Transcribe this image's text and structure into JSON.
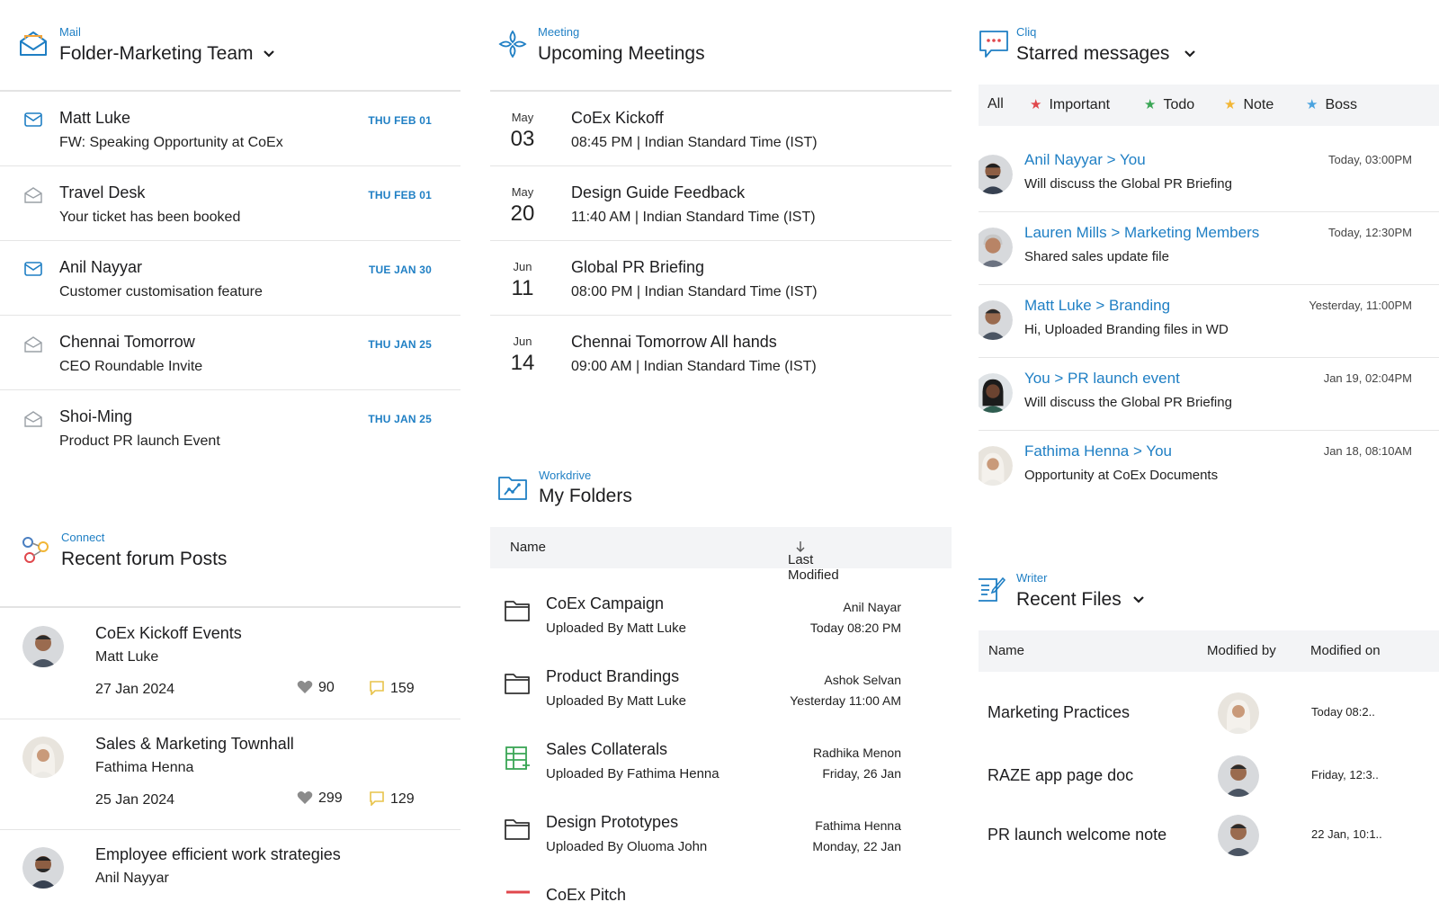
{
  "mail": {
    "app": "Mail",
    "title": "Folder-Marketing Team",
    "items": [
      {
        "sender": "Matt Luke",
        "subject": "FW: Speaking Opportunity at CoEx",
        "date": "THU FEB 01",
        "icon": "envelope-icon"
      },
      {
        "sender": "Travel Desk",
        "subject": "Your ticket has been booked",
        "date": "THU FEB 01",
        "icon": "envelope-open-icon"
      },
      {
        "sender": "Anil Nayyar",
        "subject": "Customer customisation feature",
        "date": "TUE JAN 30",
        "icon": "envelope-icon"
      },
      {
        "sender": "Chennai Tomorrow",
        "subject": "CEO Roundable Invite",
        "date": "THU JAN 25",
        "icon": "envelope-open-icon"
      },
      {
        "sender": "Shoi-Ming",
        "subject": "Product PR launch Event",
        "date": "THU JAN 25",
        "icon": "envelope-open-icon"
      }
    ]
  },
  "connect": {
    "app": "Connect",
    "title": "Recent forum Posts",
    "posts": [
      {
        "title": "CoEx Kickoff Events",
        "author": "Matt Luke",
        "date": "27 Jan 2024",
        "likes": "90",
        "comments": "159"
      },
      {
        "title": "Sales & Marketing Townhall",
        "author": "Fathima Henna",
        "date": "25 Jan 2024",
        "likes": "299",
        "comments": "129"
      },
      {
        "title": "Employee efficient work strategies",
        "author": "Anil Nayyar",
        "date": "",
        "likes": "",
        "comments": ""
      }
    ]
  },
  "meeting": {
    "app": "Meeting",
    "title": "Upcoming Meetings",
    "items": [
      {
        "month": "May",
        "day": "03",
        "title": "CoEx Kickoff",
        "time": "08:45 PM | Indian Standard Time (IST)"
      },
      {
        "month": "May",
        "day": "20",
        "title": "Design Guide Feedback",
        "time": "11:40 AM | Indian Standard Time (IST)"
      },
      {
        "month": "Jun",
        "day": "11",
        "title": "Global PR Briefing",
        "time": "08:00 PM | Indian Standard Time (IST)"
      },
      {
        "month": "Jun",
        "day": "14",
        "title": "Chennai Tomorrow All hands",
        "time": "09:00 AM | Indian Standard Time (IST)"
      }
    ]
  },
  "workdrive": {
    "app": "Workdrive",
    "title": "My Folders",
    "col_name": "Name",
    "col_modified": "Last Modified",
    "folders": [
      {
        "name": "CoEx Campaign",
        "uploaded_by": "Uploaded By Matt Luke",
        "modifier": "Anil Nayar",
        "when": "Today 08:20 PM",
        "icon": "folder-icon"
      },
      {
        "name": "Product Brandings",
        "uploaded_by": "Uploaded By Matt Luke",
        "modifier": "Ashok Selvan",
        "when": "Yesterday 11:00 AM",
        "icon": "folder-icon"
      },
      {
        "name": "Sales Collaterals",
        "uploaded_by": "Uploaded By Fathima Henna",
        "modifier": "Radhika Menon",
        "when": "Friday, 26 Jan",
        "icon": "spreadsheet-icon"
      },
      {
        "name": "Design Prototypes",
        "uploaded_by": "Uploaded By Oluoma John",
        "modifier": "Fathima Henna",
        "when": "Monday, 22 Jan",
        "icon": "folder-icon"
      },
      {
        "name": "CoEx Pitch",
        "uploaded_by": "",
        "modifier": "",
        "when": "",
        "icon": "presentation-icon"
      }
    ]
  },
  "cliq": {
    "app": "Cliq",
    "title": "Starred messages",
    "filters": [
      {
        "label": "All",
        "star_color": ""
      },
      {
        "label": "Important",
        "star_color": "#e0474c"
      },
      {
        "label": "Todo",
        "star_color": "#3aa655"
      },
      {
        "label": "Note",
        "star_color": "#f2b635"
      },
      {
        "label": "Boss",
        "star_color": "#4aa3df"
      }
    ],
    "messages": [
      {
        "conversation": "Anil Nayyar > You",
        "text": "Will discuss the Global PR Briefing",
        "time": "Today, 03:00PM"
      },
      {
        "conversation": "Lauren Mills > Marketing Members",
        "text": "Shared sales update file",
        "time": "Today, 12:30PM"
      },
      {
        "conversation": "Matt Luke > Branding",
        "text": "Hi, Uploaded Branding files in WD",
        "time": "Yesterday, 11:00PM"
      },
      {
        "conversation": "You > PR launch event",
        "text": "Will discuss the Global PR Briefing",
        "time": "Jan 19, 02:04PM"
      },
      {
        "conversation": "Fathima Henna > You",
        "text": "Opportunity at CoEx Documents",
        "time": "Jan 18, 08:10AM"
      }
    ]
  },
  "writer": {
    "app": "Writer",
    "title": "Recent Files",
    "col_name": "Name",
    "col_modified_by": "Modified by",
    "col_modified_on": "Modified on",
    "files": [
      {
        "name": "Marketing Practices",
        "modified_on": "Today 08:2.."
      },
      {
        "name": "RAZE app page doc",
        "modified_on": "Friday, 12:3.."
      },
      {
        "name": "PR launch welcome note",
        "modified_on": "22 Jan, 10:1.."
      }
    ]
  },
  "colors": {
    "accent": "#1f7fc4",
    "divider": "#e3e3e3",
    "table_head_bg": "#f3f4f6"
  }
}
